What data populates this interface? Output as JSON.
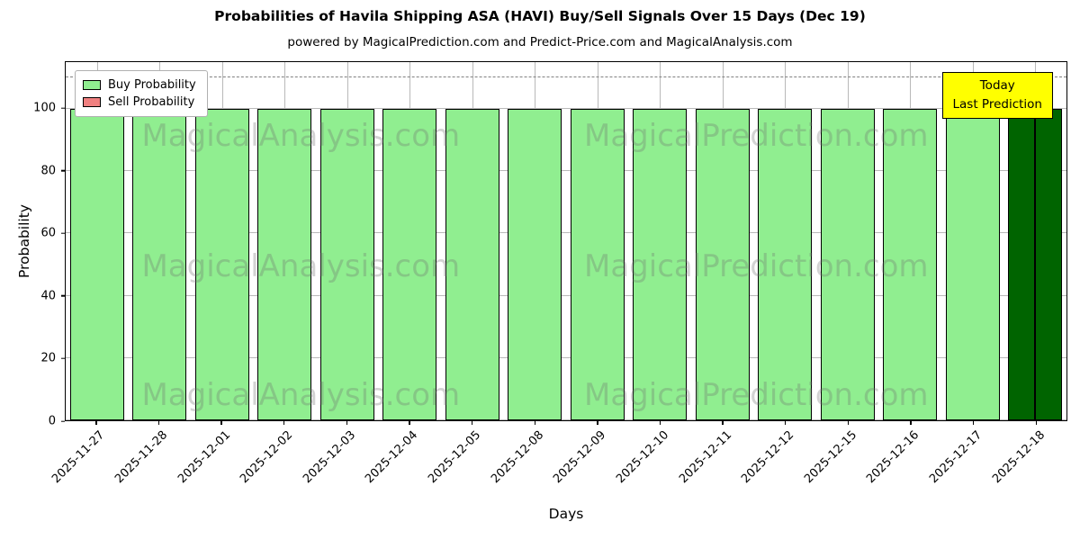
{
  "chart_data": {
    "type": "bar",
    "title": "Probabilities of Havila Shipping ASA (HAVI) Buy/Sell Signals Over 15 Days (Dec 19)",
    "subtitle": "powered by MagicalPrediction.com and Predict-Price.com and MagicalAnalysis.com",
    "xlabel": "Days",
    "ylabel": "Probability",
    "categories": [
      "2025-11-27",
      "2025-11-28",
      "2025-12-01",
      "2025-12-02",
      "2025-12-03",
      "2025-12-04",
      "2025-12-05",
      "2025-12-08",
      "2025-12-09",
      "2025-12-10",
      "2025-12-11",
      "2025-12-12",
      "2025-12-15",
      "2025-12-16",
      "2025-12-17",
      "2025-12-18"
    ],
    "series": [
      {
        "name": "Buy Probability",
        "color": "#90EE90",
        "values": [
          100,
          100,
          100,
          100,
          100,
          100,
          100,
          100,
          100,
          100,
          100,
          100,
          100,
          100,
          100,
          100
        ]
      },
      {
        "name": "Sell Probability",
        "color": "#F08080",
        "values": [
          0,
          0,
          0,
          0,
          0,
          0,
          0,
          0,
          0,
          0,
          0,
          0,
          0,
          0,
          0,
          0
        ]
      }
    ],
    "today": {
      "index": 15,
      "category": "2025-12-18",
      "color": "#006400"
    },
    "ylim": [
      0,
      115
    ],
    "yticks": [
      0,
      20,
      40,
      60,
      80,
      100
    ],
    "dashed_line_y": 110,
    "grid": true,
    "legend_position": "upper left"
  },
  "annotation": {
    "lines": [
      "Today",
      "Last Prediction"
    ],
    "bg_color": "#FFFF00",
    "border_color": "#000000"
  },
  "watermarks": {
    "left_text": "MagicalAnalysis.com",
    "right_text": "MagicalPrediction.com"
  }
}
